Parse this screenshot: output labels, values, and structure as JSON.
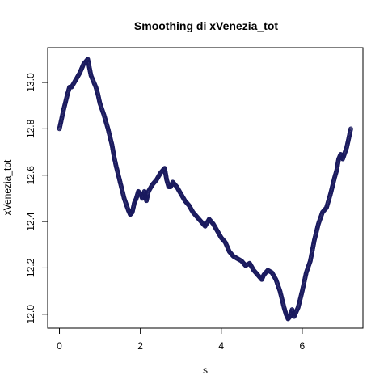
{
  "chart_data": {
    "type": "scatter",
    "title": "Smoothing di xVenezia_tot",
    "xlabel": "s",
    "ylabel": "xVenezia_tot",
    "xlim": [
      -0.29,
      7.5
    ],
    "ylim": [
      11.94,
      13.15
    ],
    "xticks": [
      0,
      2,
      4,
      6
    ],
    "xtick_labels": [
      "0",
      "2",
      "4",
      "6"
    ],
    "yticks": [
      12.0,
      12.2,
      12.4,
      12.6,
      12.8,
      13.0
    ],
    "ytick_labels": [
      "12.0",
      "12.2",
      "12.4",
      "12.6",
      "12.8",
      "13.0"
    ],
    "grid": false,
    "marker": "open-circle",
    "point_color": "#1a1a5e",
    "series": [
      {
        "x": [
          0.0,
          0.1,
          0.2,
          0.25,
          0.3,
          0.4,
          0.5,
          0.6,
          0.7,
          0.78,
          0.9,
          0.95,
          1.0,
          1.1,
          1.2,
          1.3,
          1.35,
          1.4,
          1.5,
          1.6,
          1.7,
          1.75,
          1.8,
          1.85,
          1.9,
          1.95,
          2.0,
          2.05,
          2.1,
          2.15,
          2.2,
          2.3,
          2.4,
          2.5,
          2.6,
          2.65,
          2.7,
          2.75,
          2.8,
          2.9,
          3.0,
          3.1,
          3.2,
          3.3,
          3.4,
          3.5,
          3.6,
          3.7,
          3.8,
          3.9,
          4.0,
          4.1,
          4.2,
          4.3,
          4.4,
          4.5,
          4.6,
          4.7,
          4.8,
          4.9,
          5.0,
          5.05,
          5.15,
          5.25,
          5.35,
          5.45,
          5.55,
          5.6,
          5.65,
          5.7,
          5.75,
          5.8,
          5.9,
          6.0,
          6.1,
          6.2,
          6.3,
          6.4,
          6.5,
          6.6,
          6.7,
          6.8,
          6.85,
          6.9,
          6.95,
          7.0,
          7.1,
          7.2
        ],
        "y": [
          12.8,
          12.88,
          12.95,
          12.98,
          12.98,
          13.01,
          13.04,
          13.08,
          13.1,
          13.03,
          12.98,
          12.95,
          12.91,
          12.86,
          12.8,
          12.73,
          12.68,
          12.64,
          12.57,
          12.5,
          12.45,
          12.43,
          12.44,
          12.48,
          12.5,
          12.53,
          12.52,
          12.5,
          12.53,
          12.49,
          12.53,
          12.56,
          12.58,
          12.61,
          12.63,
          12.58,
          12.55,
          12.55,
          12.57,
          12.55,
          12.52,
          12.49,
          12.47,
          12.44,
          12.42,
          12.4,
          12.38,
          12.41,
          12.39,
          12.36,
          12.33,
          12.31,
          12.27,
          12.25,
          12.24,
          12.23,
          12.21,
          12.22,
          12.19,
          12.17,
          12.15,
          12.17,
          12.19,
          12.18,
          12.15,
          12.1,
          12.03,
          12.0,
          11.98,
          11.99,
          12.02,
          11.99,
          12.03,
          12.1,
          12.18,
          12.23,
          12.32,
          12.39,
          12.44,
          12.46,
          12.52,
          12.59,
          12.62,
          12.67,
          12.69,
          12.67,
          12.72,
          12.8
        ]
      }
    ]
  }
}
